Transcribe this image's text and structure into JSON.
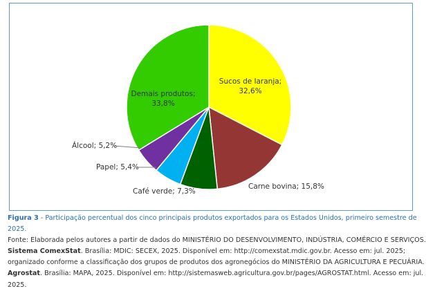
{
  "chart_data": {
    "type": "pie",
    "slices": [
      {
        "label": "Sucos de laranja",
        "value": 32.6,
        "value_text": "32,6%",
        "color": "#ffff00"
      },
      {
        "label": "Carne bovina",
        "value": 15.8,
        "value_text": "15,8%",
        "color": "#943634"
      },
      {
        "label": "Café verde",
        "value": 7.3,
        "value_text": "7,3%",
        "color": "#006100"
      },
      {
        "label": "Papel",
        "value": 5.4,
        "value_text": "5,4%",
        "color": "#00b0f0"
      },
      {
        "label": "Álcool",
        "value": 5.2,
        "value_text": "5,2%",
        "color": "#7030a0"
      },
      {
        "label": "Demais produtos",
        "value": 33.8,
        "value_text": "33,8%",
        "color": "#33cc00"
      }
    ],
    "start_angle_deg": 0,
    "direction": "clockwise",
    "legend": "none"
  },
  "labels": {
    "sucos_line1": "Sucos de laranja;",
    "sucos_line2": "32,6%",
    "carne": "Carne bovina; 15,8%",
    "cafe": "Café verde; 7,3%",
    "papel": "Papel; 5,4%",
    "alcool": "Álcool; 5,2%",
    "demais_line1": "Demais produtos;",
    "demais_line2": "33,8%"
  },
  "caption": {
    "figure_label": "Figura 3",
    "figure_title": " - Participação percentual dos cinco principais produtos exportados para os Estados Unidos, primeiro semestre de 2025.",
    "source_prefix": "Fonte: Elaborada pelos autores a partir de dados do MINISTÉRIO DO DESENVOLVIMENTO, INDÚSTRIA, COMÉRCIO E SERVIÇOS. ",
    "source_bold1": "Sistema ComexStat",
    "source_mid": ". Brasília: MDIC: SECEX, 2025. Disponível em: http://comexstat.mdic.gov.br. Acesso em: jul. 2025; organizado conforme a classificação dos grupos de produtos dos agronegócios do MINISTÉRIO DA AGRICULTURA E PECUÁRIA. ",
    "source_bold2": "Agrostat",
    "source_end": ". Brasília: MAPA, 2025. Disponível em: http://sistemasweb.agricultura.gov.br/pages/AGROSTAT.html. Acesso em: jul. 2025."
  }
}
